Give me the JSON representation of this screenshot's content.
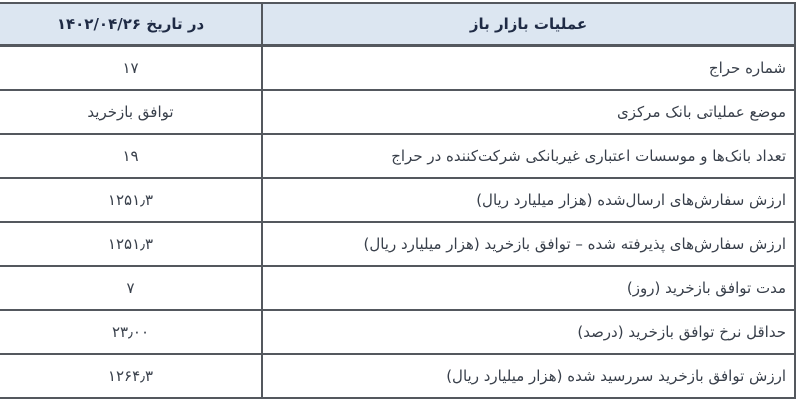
{
  "table": {
    "title_semantic": "open-market-operations-report",
    "colors": {
      "header_bg": "#dce6f1",
      "border": "#54585e",
      "header_text": "#1f2b45",
      "body_text": "#39404b"
    },
    "header": {
      "operations_label": "عملیات بازار باز",
      "date_label": "در تاریخ ۱۴۰۲/۰۴/۲۶"
    },
    "rows": [
      {
        "label": "شماره حراج",
        "value": "۱۷"
      },
      {
        "label": "موضع عملیاتی بانک مرکزی",
        "value": "توافق بازخرید"
      },
      {
        "label": "تعداد بانک‌ها و موسسات اعتباری غیربانکی شرکت‌کننده در حراج",
        "value": "۱۹"
      },
      {
        "label": "ارزش سفارش‌های ارسال‌شده (هزار میلیارد ریال)",
        "value": "۱۲۵۱٫۳"
      },
      {
        "label": "ارزش سفارش‌های پذیرفته شده – توافق بازخرید (هزار میلیارد ریال)",
        "value": "۱۲۵۱٫۳"
      },
      {
        "label": "مدت توافق بازخرید (روز)",
        "value": "۷"
      },
      {
        "label": "حداقل نرخ توافق بازخرید (درصد)",
        "value": "۲۳٫۰۰"
      },
      {
        "label": "ارزش توافق بازخرید سررسید شده (هزار میلیارد ریال)",
        "value": "۱۲۶۴٫۳"
      }
    ]
  }
}
